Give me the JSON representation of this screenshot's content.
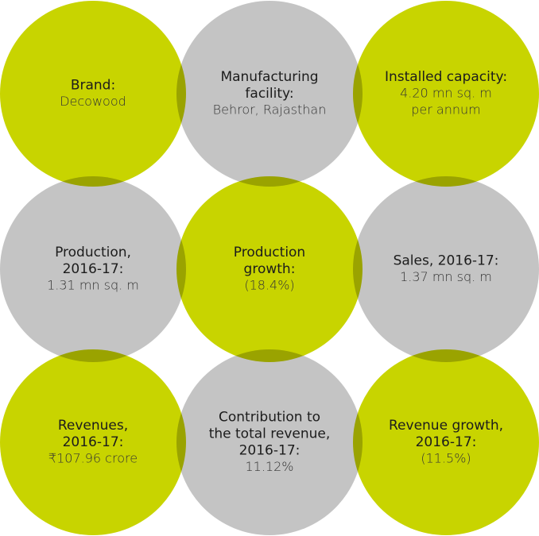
{
  "cells": [
    {
      "label": [
        "Brand:"
      ],
      "value": [
        "Decowood"
      ]
    },
    {
      "label": [
        "Manufacturing",
        "facility:"
      ],
      "value": [
        "Behror, Rajasthan"
      ]
    },
    {
      "label": [
        "Installed capacity:"
      ],
      "value": [
        "4.20 mn sq. m",
        "per annum"
      ]
    },
    {
      "label": [
        "Production,",
        "2016-17:"
      ],
      "value": [
        "1.31 mn sq. m"
      ]
    },
    {
      "label": [
        "Production",
        "growth:"
      ],
      "value": [
        "(18.4%)"
      ]
    },
    {
      "label": [
        "Sales, 2016-17:"
      ],
      "value": [
        "1.37 mn sq. m"
      ]
    },
    {
      "label": [
        "Revenues,",
        "2016-17:"
      ],
      "value": [
        "₹107.96 crore"
      ]
    },
    {
      "label": [
        "Contribution to",
        "the total revenue,",
        "2016-17:"
      ],
      "value": [
        "11.12%"
      ]
    },
    {
      "label": [
        "Revenue growth,",
        "2016-17:"
      ],
      "value": [
        "(11.5%)"
      ]
    }
  ]
}
